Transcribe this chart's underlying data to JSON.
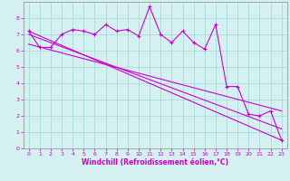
{
  "xlabel": "Windchill (Refroidissement éolien,°C)",
  "bg_color": "#d4f0f0",
  "line_color": "#cc00cc",
  "grid_color": "#a0d8d8",
  "xlim": [
    -0.5,
    23.5
  ],
  "ylim": [
    0,
    9
  ],
  "xticks": [
    0,
    1,
    2,
    3,
    4,
    5,
    6,
    7,
    8,
    9,
    10,
    11,
    12,
    13,
    14,
    15,
    16,
    17,
    18,
    19,
    20,
    21,
    22,
    23
  ],
  "yticks": [
    0,
    1,
    2,
    3,
    4,
    5,
    6,
    7,
    8
  ],
  "series1_x": [
    0,
    1,
    2,
    3,
    4,
    5,
    6,
    7,
    8,
    9,
    10,
    11,
    12,
    13,
    14,
    15,
    16,
    17,
    18,
    19,
    20,
    21,
    22,
    23
  ],
  "series1_y": [
    7.2,
    6.2,
    6.2,
    7.0,
    7.3,
    7.2,
    7.0,
    7.6,
    7.2,
    7.3,
    6.9,
    8.7,
    7.0,
    6.5,
    7.2,
    6.5,
    6.1,
    7.6,
    3.8,
    3.8,
    2.1,
    2.0,
    2.3,
    0.5
  ],
  "series2_x": [
    0,
    23
  ],
  "series2_y": [
    7.2,
    0.5
  ],
  "series3_x": [
    0,
    23
  ],
  "series3_y": [
    7.0,
    1.2
  ],
  "series4_x": [
    0,
    23
  ],
  "series4_y": [
    6.4,
    2.3
  ],
  "xlabel_color": "#cc00cc",
  "tick_color": "#cc00cc",
  "spine_color": "#888888"
}
